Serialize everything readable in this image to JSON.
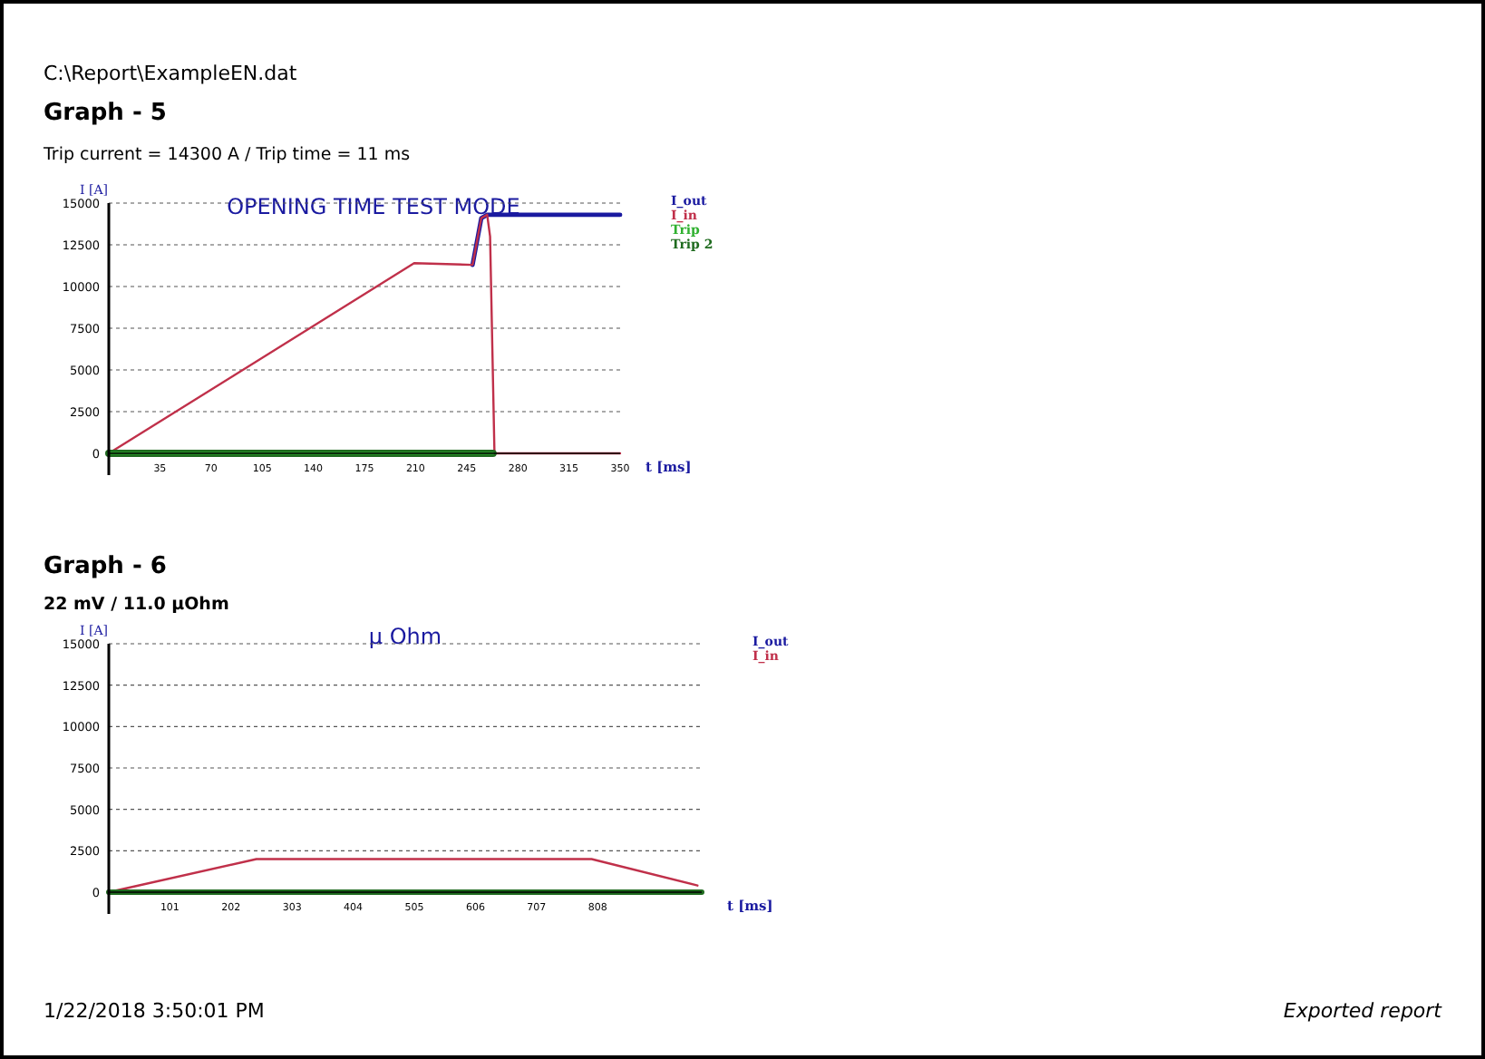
{
  "chart_data": [
    {
      "type": "line",
      "title": "Graph - 5",
      "subtitle": "Trip current = 14300 A / Trip time = 11 ms",
      "xlabel": "t [ms]",
      "ylabel": "I [A]",
      "annotations": [
        "C:\\Report\\ExampleEN.dat",
        "OPENING TIME TEST MODE"
      ],
      "xlim": [
        0,
        350
      ],
      "ylim": [
        0,
        15000
      ],
      "xticks": [
        35,
        70,
        105,
        140,
        175,
        210,
        245,
        280,
        315,
        350
      ],
      "yticks": [
        0,
        2500,
        5000,
        7500,
        10000,
        12500,
        15000
      ],
      "grid": "y",
      "legend": "top right",
      "line_style": "solid",
      "series": [
        {
          "name": "I_out",
          "color": "#1a1aa0",
          "x": [
            249,
            255,
            259,
            350
          ],
          "values": [
            11300,
            14100,
            14300,
            14300
          ]
        },
        {
          "name": "I_in",
          "color": "#c0304a",
          "x": [
            0,
            209,
            249,
            255,
            259,
            261,
            264,
            350
          ],
          "values": [
            0,
            11400,
            11300,
            14100,
            14300,
            13000,
            0,
            0
          ]
        },
        {
          "name": "Trip",
          "color": "#2fb02f",
          "x": [
            0,
            263
          ],
          "values": [
            0,
            0
          ]
        },
        {
          "name": "Trip 2",
          "color": "#1f6b1f",
          "x": [
            0,
            263
          ],
          "values": [
            0,
            0
          ]
        }
      ]
    },
    {
      "type": "line",
      "title": "Graph - 6",
      "subtitle": "22 mV / 11.0 µOhm",
      "xlabel": "t [ms]",
      "ylabel": "I [A]",
      "annotations": [
        "µ Ohm",
        "1/22/2018 3:50:01 PM",
        "Exported report"
      ],
      "xlim": [
        0,
        980
      ],
      "ylim": [
        0,
        15000
      ],
      "xticks": [
        101,
        202,
        303,
        404,
        505,
        606,
        707,
        808
      ],
      "yticks": [
        0,
        2500,
        5000,
        7500,
        10000,
        12500,
        15000
      ],
      "grid": "y",
      "legend": "top right",
      "line_style": "solid",
      "series": [
        {
          "name": "I_out",
          "color": "#1a1aa0"
        },
        {
          "name": "I_in",
          "color": "#c0304a",
          "x": [
            0,
            244,
            798,
            973
          ],
          "values": [
            0,
            2000,
            2000,
            400
          ]
        },
        {
          "color": "#1f6b1f",
          "x": [
            0,
            980
          ],
          "values": [
            0,
            0
          ]
        }
      ]
    }
  ]
}
